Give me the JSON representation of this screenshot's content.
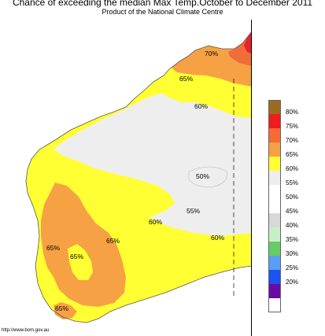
{
  "title": "Chance of exceeding the median Max Temp.October to December 2011",
  "subtitle": "Product of the National Climate Centre",
  "credit": "http://www.bom.gov.au",
  "colors": {
    "ocean": "#ffffff",
    "land_60_65": "#ffff33",
    "land_65_70": "#f7a145",
    "land_70_75": "#f06d3a",
    "land_75_80": "#e8232a",
    "land_50_60": "#eeeeee",
    "boundary": "#555555"
  },
  "legend": [
    {
      "label": "80%",
      "color": "#9c6a1f"
    },
    {
      "label": "75%",
      "color": "#ee1c1c"
    },
    {
      "label": "70%",
      "color": "#f56a35"
    },
    {
      "label": "65%",
      "color": "#f7a145"
    },
    {
      "label": "60%",
      "color": "#ffff33"
    },
    {
      "label": "55%",
      "color": "#eeeeee"
    },
    {
      "label": "50%",
      "color": "#ffffff"
    },
    {
      "label": "45%",
      "color": "#ffffff"
    },
    {
      "label": "40%",
      "color": "#d8d8d8"
    },
    {
      "label": "35%",
      "color": "#c8f0c8"
    },
    {
      "label": "30%",
      "color": "#66cc66"
    },
    {
      "label": "25%",
      "color": "#5a9ef5"
    },
    {
      "label": "20%",
      "color": "#1c52ee"
    },
    {
      "label": "",
      "color": "#6a0aa5"
    }
  ],
  "map_labels": {
    "kimberley_70": "70%",
    "kimberley_65": "65%",
    "pilbara_60": "60%",
    "interior_50": "50%",
    "interior_55": "55%",
    "central_60": "60%",
    "south_60": "60%",
    "west_65_a": "65%",
    "west_65_b": "65%",
    "west_65_c": "65%",
    "southwest_65": "65%"
  }
}
